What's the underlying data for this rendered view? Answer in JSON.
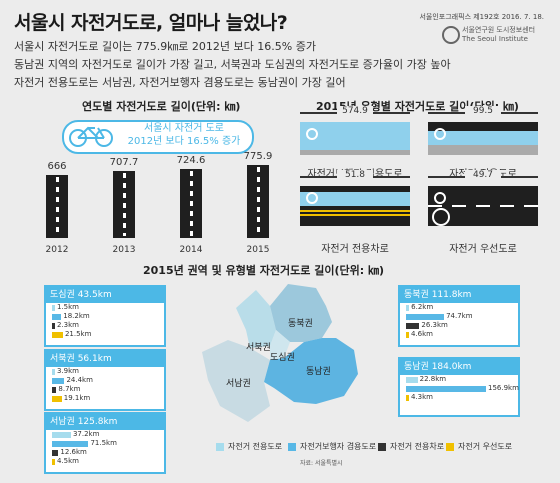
{
  "header": {
    "title": "서울시 자전거도로, 얼마나 늘었나?",
    "publication": "서울인포그래픽스 제192호 2016. 7. 18.",
    "institute_ko": "서울연구원 도시정보센터",
    "institute_en": "The Seoul Institute"
  },
  "lead": {
    "line1": "서울시 자전거도로 길이는 775.9㎞로 2012년 보다 16.5% 증가",
    "line2": "동남권 지역의 자전거도로 길이가 가장 길고, 서북권과 도심권의 자전거도로 증가율이 가장 높아",
    "line3": "자전거 전용도로는 서남권, 자전거보행자 겸용도로는 동남권이 가장 길어"
  },
  "bubble": {
    "line1": "서울시 자전거 도로",
    "line2": "2012년 보다 16.5% 증가"
  },
  "source": "자료: 서울특별시",
  "chart_data": [
    {
      "type": "bar",
      "title": "연도별 자전거도로 길이(단위: ㎞)",
      "categories": [
        "2012",
        "2013",
        "2014",
        "2015"
      ],
      "values": [
        666,
        707.7,
        724.6,
        775.9
      ]
    },
    {
      "type": "bar",
      "title": "2015년 유형별 자전거도로 길이(단위: ㎞)",
      "categories": [
        "자전거보행자 겸용도로",
        "자전거 전용도로",
        "자전거 전용차로",
        "자전거 우선도로"
      ],
      "values": [
        574.9,
        99.5,
        51.8,
        49.7
      ]
    },
    {
      "type": "bar",
      "title": "2015년 권역 및 유형별 자전거도로 길이(단위: ㎞)",
      "legend": [
        "자전거 전용도로",
        "자전거보행자 겸용도로",
        "자전거 전용차로",
        "자전거 우선도로"
      ],
      "colors": [
        "#a6dced",
        "#58b8e6",
        "#333333",
        "#f0c000"
      ],
      "regions": [
        {
          "name": "도심권",
          "total_label": "도심권 43.5km",
          "values": [
            1.5,
            18.2,
            2.3,
            21.5
          ],
          "labels": [
            "1.5km",
            "18.2km",
            "2.3km",
            "21.5km"
          ]
        },
        {
          "name": "서북권",
          "total_label": "서북권 56.1km",
          "values": [
            3.9,
            24.4,
            8.7,
            19.1
          ],
          "labels": [
            "3.9km",
            "24.4km",
            "8.7km",
            "19.1km"
          ]
        },
        {
          "name": "서남권",
          "total_label": "서남권 125.8km",
          "values": [
            37.2,
            71.5,
            12.6,
            4.5
          ],
          "labels": [
            "37.2km",
            "71.5km",
            "12.6km",
            "4.5km"
          ]
        },
        {
          "name": "동북권",
          "total_label": "동북권 111.8km",
          "values": [
            6.2,
            74.7,
            26.3,
            4.6
          ],
          "labels": [
            "6.2km",
            "74.7km",
            "26.3km",
            "4.6km"
          ]
        },
        {
          "name": "동남권",
          "total_label": "동남권 184.0km",
          "values": [
            22.8,
            156.9,
            0,
            4.3
          ],
          "labels": [
            "22.8km",
            "156.9km",
            "",
            "4.3km"
          ]
        }
      ]
    }
  ]
}
